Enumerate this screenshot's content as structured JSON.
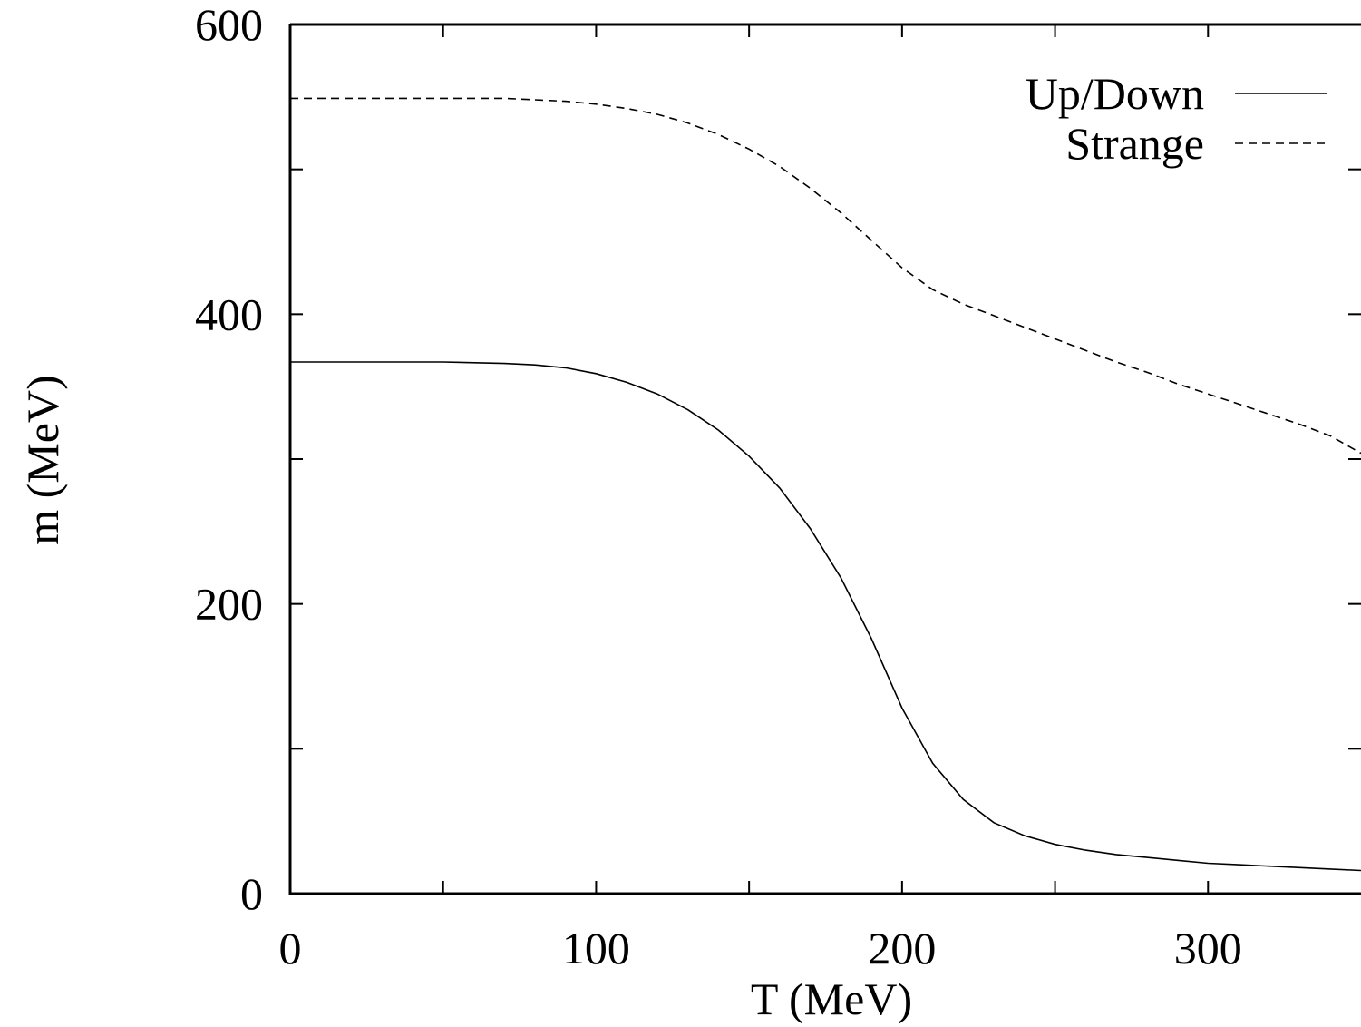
{
  "chart_data": {
    "type": "line",
    "title": "",
    "xlabel": "T (MeV)",
    "ylabel": "m (MeV)",
    "xlim": [
      0,
      350
    ],
    "ylim": [
      0,
      600
    ],
    "x_ticks": [
      0,
      50,
      100,
      150,
      200,
      250,
      300
    ],
    "x_tick_labels": [
      "0",
      "",
      "100",
      "",
      "200",
      "",
      "300"
    ],
    "y_ticks": [
      0,
      100,
      200,
      300,
      400,
      500,
      600
    ],
    "y_tick_labels": [
      "0",
      "",
      "200",
      "",
      "400",
      "",
      "600"
    ],
    "grid": false,
    "legend_position": "top-right",
    "series": [
      {
        "name": "Up/Down",
        "style": "solid",
        "x": [
          0,
          50,
          70,
          80,
          90,
          100,
          110,
          120,
          130,
          140,
          150,
          160,
          170,
          180,
          190,
          200,
          210,
          220,
          230,
          240,
          250,
          260,
          270,
          280,
          290,
          300,
          310,
          320,
          330,
          340,
          350
        ],
        "y": [
          367,
          367,
          366,
          365,
          363,
          359,
          353,
          345,
          334,
          320,
          302,
          280,
          252,
          218,
          176,
          128,
          90,
          65,
          49,
          40,
          34,
          30,
          27,
          25,
          23,
          21,
          20,
          19,
          18,
          17,
          16
        ]
      },
      {
        "name": "Strange",
        "style": "dashed",
        "x": [
          0,
          50,
          70,
          80,
          90,
          100,
          110,
          120,
          130,
          140,
          150,
          160,
          170,
          180,
          190,
          200,
          210,
          220,
          230,
          240,
          250,
          260,
          270,
          280,
          290,
          300,
          310,
          320,
          330,
          340,
          350
        ],
        "y": [
          549,
          549,
          549,
          548,
          547,
          545,
          542,
          538,
          532,
          524,
          514,
          502,
          487,
          470,
          451,
          432,
          417,
          407,
          399,
          391,
          383,
          375,
          367,
          360,
          352,
          345,
          338,
          331,
          324,
          316,
          304
        ]
      }
    ]
  }
}
